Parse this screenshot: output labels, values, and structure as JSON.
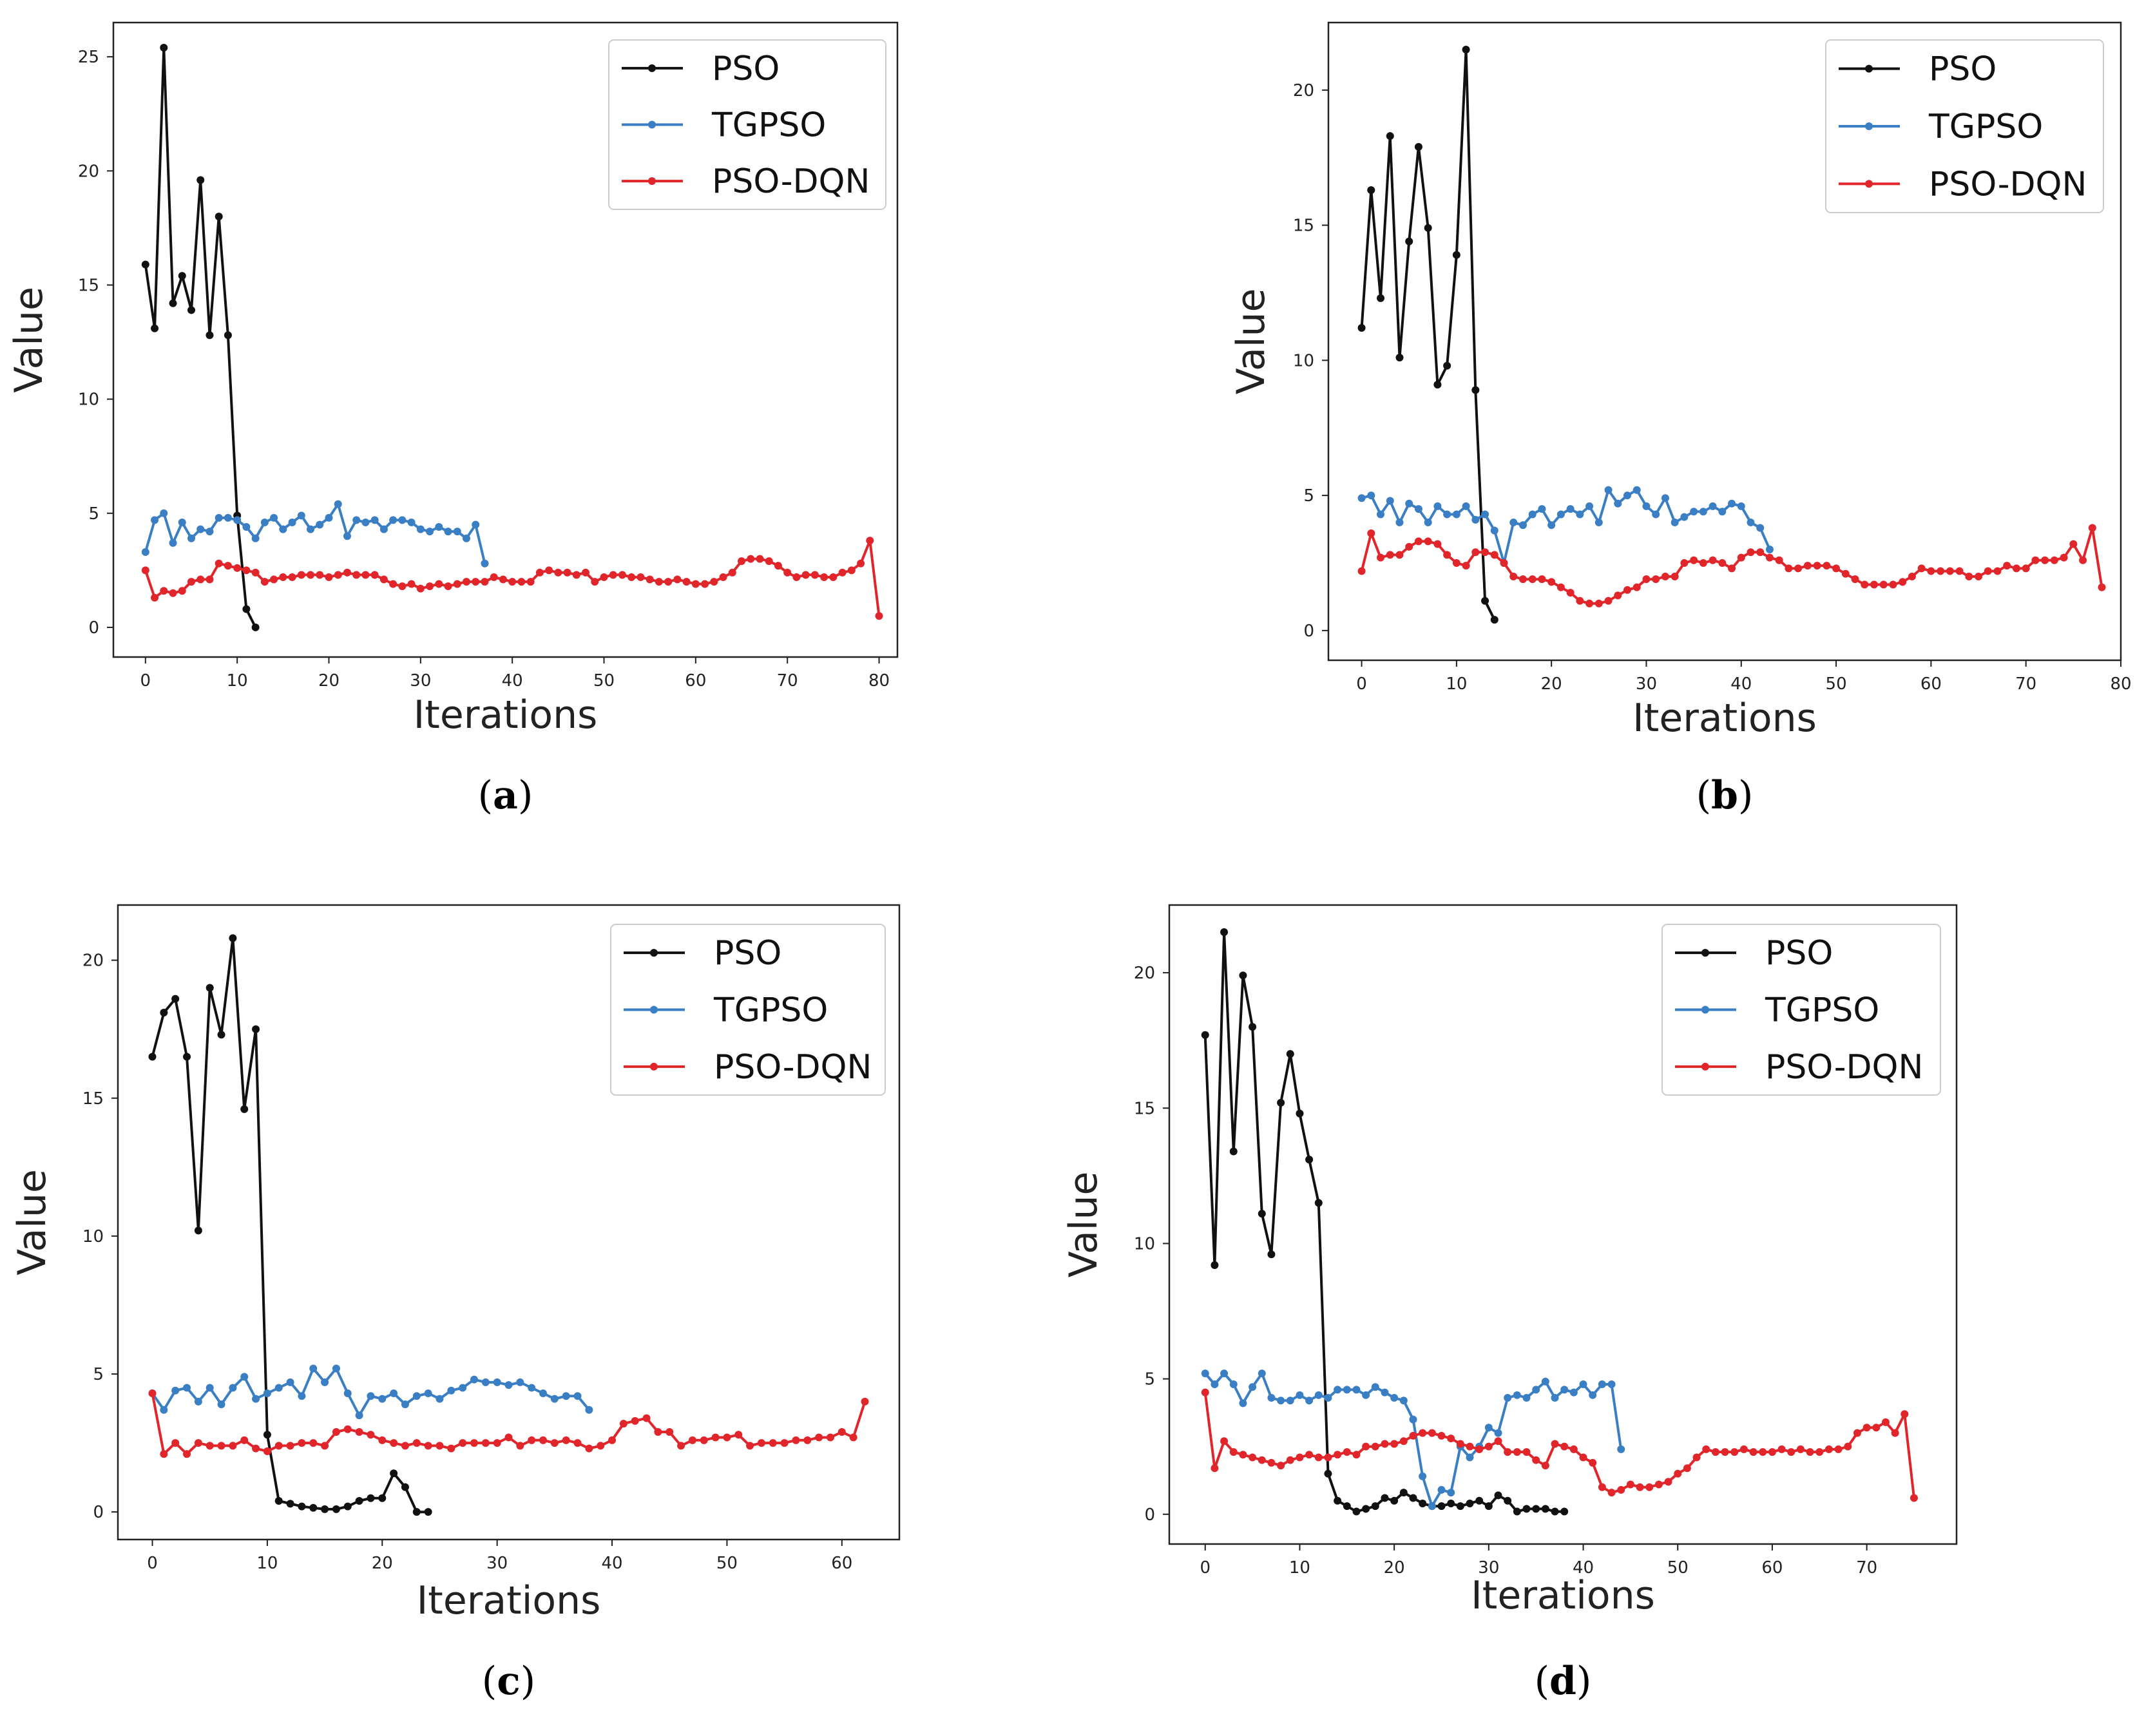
{
  "figure": {
    "series_colors": {
      "PSO": "#111111",
      "TGPSO": "#3a7fc4",
      "PSO-DQN": "#e0262b"
    }
  },
  "chart_data": [
    {
      "type": "line",
      "panel": "a",
      "caption_letter": "a",
      "xlabel": "Iterations",
      "ylabel": "Value",
      "xlim": [
        -3.5,
        82
      ],
      "ylim": [
        -1.3,
        26.5
      ],
      "xticks": [
        0,
        10,
        20,
        30,
        40,
        50,
        60,
        70,
        80
      ],
      "yticks": [
        0,
        5,
        10,
        15,
        20,
        25
      ],
      "legend_position": "top-right",
      "series": [
        {
          "name": "PSO",
          "color": "#111111",
          "values": [
            15.9,
            13.1,
            25.4,
            14.2,
            15.4,
            13.9,
            19.6,
            12.8,
            18,
            12.8,
            4.9,
            0.8,
            0
          ]
        },
        {
          "name": "TGPSO",
          "color": "#3a7fc4",
          "values": [
            3.3,
            4.7,
            5.0,
            3.7,
            4.6,
            3.9,
            4.3,
            4.2,
            4.8,
            4.8,
            4.7,
            4.4,
            3.9,
            4.6,
            4.8,
            4.3,
            4.6,
            4.9,
            4.3,
            4.5,
            4.8,
            5.4,
            4.0,
            4.7,
            4.6,
            4.7,
            4.3,
            4.7,
            4.7,
            4.6,
            4.3,
            4.2,
            4.4,
            4.2,
            4.2,
            3.9,
            4.5,
            2.8
          ]
        },
        {
          "name": "PSO-DQN",
          "color": "#e0262b",
          "values": [
            2.5,
            1.3,
            1.6,
            1.5,
            1.6,
            2.0,
            2.1,
            2.1,
            2.8,
            2.7,
            2.6,
            2.5,
            2.4,
            2.0,
            2.1,
            2.2,
            2.2,
            2.3,
            2.3,
            2.3,
            2.2,
            2.3,
            2.4,
            2.3,
            2.3,
            2.3,
            2.1,
            1.9,
            1.8,
            1.9,
            1.7,
            1.8,
            1.9,
            1.8,
            1.9,
            2.0,
            2.0,
            2.0,
            2.2,
            2.1,
            2.0,
            2.0,
            2.0,
            2.4,
            2.5,
            2.4,
            2.4,
            2.3,
            2.4,
            2.0,
            2.2,
            2.3,
            2.3,
            2.2,
            2.2,
            2.1,
            2.0,
            2.0,
            2.1,
            2.0,
            1.9,
            1.9,
            2.0,
            2.2,
            2.4,
            2.9,
            3.0,
            3.0,
            2.9,
            2.7,
            2.4,
            2.2,
            2.3,
            2.3,
            2.2,
            2.2,
            2.4,
            2.5,
            2.8,
            3.8,
            0.5
          ]
        }
      ]
    },
    {
      "type": "line",
      "panel": "b",
      "caption_letter": "b",
      "xlabel": "Iterations",
      "ylabel": "Value",
      "xlim": [
        -3.5,
        80
      ],
      "ylim": [
        -1.1,
        22.5
      ],
      "xticks": [
        0,
        10,
        20,
        30,
        40,
        50,
        60,
        70,
        80
      ],
      "yticks": [
        0,
        5,
        10,
        15,
        20
      ],
      "legend_position": "top-right",
      "series": [
        {
          "name": "PSO",
          "color": "#111111",
          "values": [
            11.2,
            16.3,
            12.3,
            18.3,
            10.1,
            14.4,
            17.9,
            14.9,
            9.1,
            9.8,
            13.9,
            21.5,
            8.9,
            1.1,
            0.4
          ]
        },
        {
          "name": "TGPSO",
          "color": "#3a7fc4",
          "values": [
            4.9,
            5.0,
            4.3,
            4.8,
            4.0,
            4.7,
            4.5,
            4.0,
            4.6,
            4.3,
            4.3,
            4.6,
            4.1,
            4.3,
            3.7,
            2.5,
            4.0,
            3.9,
            4.3,
            4.5,
            3.9,
            4.3,
            4.5,
            4.3,
            4.6,
            4.0,
            5.2,
            4.7,
            5.0,
            5.2,
            4.6,
            4.3,
            4.9,
            4.0,
            4.2,
            4.4,
            4.4,
            4.6,
            4.4,
            4.7,
            4.6,
            4.0,
            3.8,
            3.0
          ]
        },
        {
          "name": "PSO-DQN",
          "color": "#e0262b",
          "values": [
            2.2,
            3.6,
            2.7,
            2.8,
            2.8,
            3.1,
            3.3,
            3.3,
            3.2,
            2.8,
            2.5,
            2.4,
            2.9,
            2.9,
            2.8,
            2.5,
            2.0,
            1.9,
            1.9,
            1.9,
            1.8,
            1.6,
            1.4,
            1.1,
            1.0,
            1.0,
            1.1,
            1.3,
            1.5,
            1.6,
            1.9,
            1.9,
            2.0,
            2.0,
            2.5,
            2.6,
            2.5,
            2.6,
            2.5,
            2.3,
            2.7,
            2.9,
            2.9,
            2.7,
            2.6,
            2.3,
            2.3,
            2.4,
            2.4,
            2.4,
            2.3,
            2.1,
            1.9,
            1.7,
            1.7,
            1.7,
            1.7,
            1.8,
            2.0,
            2.3,
            2.2,
            2.2,
            2.2,
            2.2,
            2.0,
            2.0,
            2.2,
            2.2,
            2.4,
            2.3,
            2.3,
            2.6,
            2.6,
            2.6,
            2.7,
            3.2,
            2.6,
            3.8,
            1.6
          ]
        }
      ]
    },
    {
      "type": "line",
      "panel": "c",
      "caption_letter": "c",
      "xlabel": "Iterations",
      "ylabel": "Value",
      "xlim": [
        -3,
        65
      ],
      "ylim": [
        -1.0,
        22.0
      ],
      "xticks": [
        0,
        10,
        20,
        30,
        40,
        50,
        60
      ],
      "yticks": [
        0,
        5,
        10,
        15,
        20
      ],
      "legend_position": "top-right",
      "series": [
        {
          "name": "PSO",
          "color": "#111111",
          "values": [
            16.5,
            18.1,
            18.6,
            16.5,
            10.2,
            19.0,
            17.3,
            20.8,
            14.6,
            17.5,
            2.8,
            0.4,
            0.3,
            0.2,
            0.15,
            0.1,
            0.1,
            0.2,
            0.4,
            0.5,
            0.5,
            1.4,
            0.9,
            0.0,
            0.0
          ]
        },
        {
          "name": "TGPSO",
          "color": "#3a7fc4",
          "values": [
            4.3,
            3.7,
            4.4,
            4.5,
            4.0,
            4.5,
            3.9,
            4.5,
            4.9,
            4.1,
            4.3,
            4.5,
            4.7,
            4.2,
            5.2,
            4.7,
            5.2,
            4.3,
            3.5,
            4.2,
            4.1,
            4.3,
            3.9,
            4.2,
            4.3,
            4.1,
            4.4,
            4.5,
            4.8,
            4.7,
            4.7,
            4.6,
            4.7,
            4.5,
            4.3,
            4.1,
            4.2,
            4.2,
            3.7
          ]
        },
        {
          "name": "PSO-DQN",
          "color": "#e0262b",
          "values": [
            4.3,
            2.1,
            2.5,
            2.1,
            2.5,
            2.4,
            2.4,
            2.4,
            2.6,
            2.3,
            2.2,
            2.4,
            2.4,
            2.5,
            2.5,
            2.4,
            2.9,
            3.0,
            2.9,
            2.8,
            2.6,
            2.5,
            2.4,
            2.5,
            2.4,
            2.4,
            2.3,
            2.5,
            2.5,
            2.5,
            2.5,
            2.7,
            2.4,
            2.6,
            2.6,
            2.5,
            2.6,
            2.5,
            2.3,
            2.4,
            2.6,
            3.2,
            3.3,
            3.4,
            2.9,
            2.9,
            2.4,
            2.6,
            2.6,
            2.7,
            2.7,
            2.8,
            2.4,
            2.5,
            2.5,
            2.5,
            2.6,
            2.6,
            2.7,
            2.7,
            2.9,
            2.7,
            4.0
          ]
        }
      ]
    },
    {
      "type": "line",
      "panel": "d",
      "caption_letter": "d",
      "xlabel": "Iterations",
      "ylabel": "Value",
      "xlim": [
        -3.8,
        79.5
      ],
      "ylim": [
        -1.1,
        22.5
      ],
      "xticks": [
        0,
        10,
        20,
        30,
        40,
        50,
        60,
        70
      ],
      "yticks": [
        0,
        5,
        10,
        15,
        20
      ],
      "legend_position": "top-right",
      "series": [
        {
          "name": "PSO",
          "color": "#111111",
          "values": [
            17.7,
            9.2,
            21.5,
            13.4,
            19.9,
            18.0,
            11.1,
            9.6,
            15.2,
            17.0,
            14.8,
            13.1,
            11.5,
            1.5,
            0.5,
            0.3,
            0.1,
            0.2,
            0.3,
            0.6,
            0.5,
            0.8,
            0.6,
            0.4,
            0.3,
            0.3,
            0.4,
            0.3,
            0.4,
            0.5,
            0.3,
            0.7,
            0.5,
            0.1,
            0.2,
            0.2,
            0.2,
            0.1,
            0.1
          ]
        },
        {
          "name": "TGPSO",
          "color": "#3a7fc4",
          "values": [
            5.2,
            4.8,
            5.2,
            4.8,
            4.1,
            4.7,
            5.2,
            4.3,
            4.2,
            4.2,
            4.4,
            4.2,
            4.4,
            4.3,
            4.6,
            4.6,
            4.6,
            4.4,
            4.7,
            4.5,
            4.3,
            4.2,
            3.5,
            1.4,
            0.3,
            0.9,
            0.8,
            2.5,
            2.1,
            2.5,
            3.2,
            3.0,
            4.3,
            4.4,
            4.3,
            4.6,
            4.9,
            4.3,
            4.6,
            4.5,
            4.8,
            4.4,
            4.8,
            4.8,
            2.4
          ]
        },
        {
          "name": "PSO-DQN",
          "color": "#e0262b",
          "values": [
            4.5,
            1.7,
            2.7,
            2.3,
            2.2,
            2.1,
            2.0,
            1.9,
            1.8,
            2.0,
            2.1,
            2.2,
            2.1,
            2.1,
            2.2,
            2.3,
            2.2,
            2.5,
            2.5,
            2.6,
            2.6,
            2.7,
            2.9,
            3.0,
            3.0,
            2.9,
            2.8,
            2.6,
            2.5,
            2.4,
            2.5,
            2.7,
            2.3,
            2.3,
            2.3,
            2.0,
            1.8,
            2.6,
            2.5,
            2.4,
            2.1,
            1.9,
            1.0,
            0.8,
            0.9,
            1.1,
            1.0,
            1.0,
            1.1,
            1.2,
            1.5,
            1.7,
            2.1,
            2.4,
            2.3,
            2.3,
            2.3,
            2.4,
            2.3,
            2.3,
            2.3,
            2.4,
            2.3,
            2.4,
            2.3,
            2.3,
            2.4,
            2.4,
            2.5,
            3.0,
            3.2,
            3.2,
            3.4,
            3.0,
            3.7,
            0.6
          ]
        }
      ]
    }
  ]
}
